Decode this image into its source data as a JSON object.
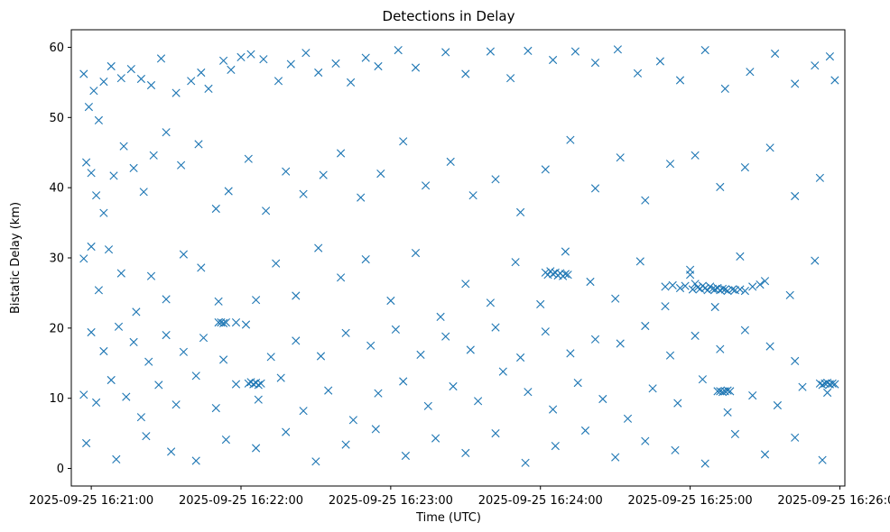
{
  "chart_data": {
    "type": "scatter",
    "title": "Detections in Delay",
    "xlabel": "Time (UTC)",
    "ylabel": "Bistatic Delay (km)",
    "marker": "x",
    "color": "#1f77b4",
    "grid": false,
    "x_start": "2025-09-25 16:20:52",
    "x_end": "2025-09-25 16:26:02",
    "xlim": [
      "2025-09-25 16:20:52",
      "2025-09-25 16:26:02"
    ],
    "ylim": [
      -2.5,
      62.5
    ],
    "x_ticks": [
      "2025-09-25 16:21:00",
      "2025-09-25 16:22:00",
      "2025-09-25 16:23:00",
      "2025-09-25 16:24:00",
      "2025-09-25 16:25:00",
      "2025-09-25 16:26:00"
    ],
    "y_ticks": [
      0,
      10,
      20,
      30,
      40,
      50,
      60
    ],
    "x_tick_labels": [
      "2025-09-25 16:21:00",
      "2025-09-25 16:22:00",
      "2025-09-25 16:23:00",
      "2025-09-25 16:24:00",
      "2025-09-25 16:25:00",
      "2025-09-25 16:26:00"
    ],
    "y_tick_labels": [
      "0",
      "10",
      "20",
      "30",
      "40",
      "50",
      "60"
    ],
    "points": [
      [
        "2025-09-25 16:20:57",
        56.2
      ],
      [
        "2025-09-25 16:20:59",
        51.5
      ],
      [
        "2025-09-25 16:21:01",
        53.8
      ],
      [
        "2025-09-25 16:21:03",
        49.6
      ],
      [
        "2025-09-25 16:21:05",
        55.1
      ],
      [
        "2025-09-25 16:21:08",
        57.3
      ],
      [
        "2025-09-25 16:21:12",
        55.6
      ],
      [
        "2025-09-25 16:21:16",
        56.9
      ],
      [
        "2025-09-25 16:21:20",
        55.5
      ],
      [
        "2025-09-25 16:21:24",
        54.6
      ],
      [
        "2025-09-25 16:21:28",
        58.4
      ],
      [
        "2025-09-25 16:21:34",
        53.5
      ],
      [
        "2025-09-25 16:21:40",
        55.2
      ],
      [
        "2025-09-25 16:21:44",
        56.4
      ],
      [
        "2025-09-25 16:21:47",
        54.1
      ],
      [
        "2025-09-25 16:21:53",
        58.1
      ],
      [
        "2025-09-25 16:21:56",
        56.8
      ],
      [
        "2025-09-25 16:22:00",
        58.6
      ],
      [
        "2025-09-25 16:22:04",
        59.0
      ],
      [
        "2025-09-25 16:22:09",
        58.3
      ],
      [
        "2025-09-25 16:22:15",
        55.2
      ],
      [
        "2025-09-25 16:22:20",
        57.6
      ],
      [
        "2025-09-25 16:22:26",
        59.2
      ],
      [
        "2025-09-25 16:22:31",
        56.4
      ],
      [
        "2025-09-25 16:22:38",
        57.7
      ],
      [
        "2025-09-25 16:22:44",
        55.0
      ],
      [
        "2025-09-25 16:22:50",
        58.5
      ],
      [
        "2025-09-25 16:22:55",
        57.3
      ],
      [
        "2025-09-25 16:23:03",
        59.6
      ],
      [
        "2025-09-25 16:23:10",
        57.1
      ],
      [
        "2025-09-25 16:23:22",
        59.3
      ],
      [
        "2025-09-25 16:23:30",
        56.2
      ],
      [
        "2025-09-25 16:23:40",
        59.4
      ],
      [
        "2025-09-25 16:23:48",
        55.6
      ],
      [
        "2025-09-25 16:23:55",
        59.5
      ],
      [
        "2025-09-25 16:24:05",
        58.2
      ],
      [
        "2025-09-25 16:24:14",
        59.4
      ],
      [
        "2025-09-25 16:24:22",
        57.8
      ],
      [
        "2025-09-25 16:24:31",
        59.7
      ],
      [
        "2025-09-25 16:24:39",
        56.3
      ],
      [
        "2025-09-25 16:24:48",
        58.0
      ],
      [
        "2025-09-25 16:24:56",
        55.3
      ],
      [
        "2025-09-25 16:25:06",
        59.6
      ],
      [
        "2025-09-25 16:25:14",
        54.1
      ],
      [
        "2025-09-25 16:25:24",
        56.5
      ],
      [
        "2025-09-25 16:25:34",
        59.1
      ],
      [
        "2025-09-25 16:25:42",
        54.8
      ],
      [
        "2025-09-25 16:25:50",
        57.4
      ],
      [
        "2025-09-25 16:25:56",
        58.7
      ],
      [
        "2025-09-25 16:25:58",
        55.3
      ],
      [
        "2025-09-25 16:20:58",
        43.6
      ],
      [
        "2025-09-25 16:21:00",
        42.1
      ],
      [
        "2025-09-25 16:21:02",
        38.9
      ],
      [
        "2025-09-25 16:21:05",
        36.4
      ],
      [
        "2025-09-25 16:21:09",
        41.7
      ],
      [
        "2025-09-25 16:21:13",
        45.9
      ],
      [
        "2025-09-25 16:21:17",
        42.8
      ],
      [
        "2025-09-25 16:21:21",
        39.4
      ],
      [
        "2025-09-25 16:21:25",
        44.6
      ],
      [
        "2025-09-25 16:21:30",
        47.9
      ],
      [
        "2025-09-25 16:21:36",
        43.2
      ],
      [
        "2025-09-25 16:21:43",
        46.2
      ],
      [
        "2025-09-25 16:21:50",
        37.0
      ],
      [
        "2025-09-25 16:21:55",
        39.5
      ],
      [
        "2025-09-25 16:22:03",
        44.1
      ],
      [
        "2025-09-25 16:22:10",
        36.7
      ],
      [
        "2025-09-25 16:22:18",
        42.3
      ],
      [
        "2025-09-25 16:22:25",
        39.1
      ],
      [
        "2025-09-25 16:22:33",
        41.8
      ],
      [
        "2025-09-25 16:22:40",
        44.9
      ],
      [
        "2025-09-25 16:22:48",
        38.6
      ],
      [
        "2025-09-25 16:22:56",
        42.0
      ],
      [
        "2025-09-25 16:23:05",
        46.6
      ],
      [
        "2025-09-25 16:23:14",
        40.3
      ],
      [
        "2025-09-25 16:23:24",
        43.7
      ],
      [
        "2025-09-25 16:23:33",
        38.9
      ],
      [
        "2025-09-25 16:23:42",
        41.2
      ],
      [
        "2025-09-25 16:23:52",
        36.5
      ],
      [
        "2025-09-25 16:24:02",
        42.6
      ],
      [
        "2025-09-25 16:24:12",
        46.8
      ],
      [
        "2025-09-25 16:24:22",
        39.9
      ],
      [
        "2025-09-25 16:24:32",
        44.3
      ],
      [
        "2025-09-25 16:24:42",
        38.2
      ],
      [
        "2025-09-25 16:24:52",
        43.4
      ],
      [
        "2025-09-25 16:25:02",
        44.6
      ],
      [
        "2025-09-25 16:25:12",
        40.1
      ],
      [
        "2025-09-25 16:25:22",
        42.9
      ],
      [
        "2025-09-25 16:25:32",
        45.7
      ],
      [
        "2025-09-25 16:25:42",
        38.8
      ],
      [
        "2025-09-25 16:25:52",
        41.4
      ],
      [
        "2025-09-25 16:20:57",
        29.9
      ],
      [
        "2025-09-25 16:21:00",
        31.6
      ],
      [
        "2025-09-25 16:21:03",
        25.4
      ],
      [
        "2025-09-25 16:21:07",
        31.2
      ],
      [
        "2025-09-25 16:21:12",
        27.8
      ],
      [
        "2025-09-25 16:21:18",
        22.3
      ],
      [
        "2025-09-25 16:21:24",
        27.4
      ],
      [
        "2025-09-25 16:21:30",
        24.1
      ],
      [
        "2025-09-25 16:21:37",
        30.5
      ],
      [
        "2025-09-25 16:21:44",
        28.6
      ],
      [
        "2025-09-25 16:21:51",
        23.8
      ],
      [
        "2025-09-25 16:21:58",
        20.8
      ],
      [
        "2025-09-25 16:22:06",
        24.0
      ],
      [
        "2025-09-25 16:22:14",
        29.2
      ],
      [
        "2025-09-25 16:22:22",
        24.6
      ],
      [
        "2025-09-25 16:22:31",
        31.4
      ],
      [
        "2025-09-25 16:22:40",
        27.2
      ],
      [
        "2025-09-25 16:22:50",
        29.8
      ],
      [
        "2025-09-25 16:23:00",
        23.9
      ],
      [
        "2025-09-25 16:23:10",
        30.7
      ],
      [
        "2025-09-25 16:23:20",
        21.6
      ],
      [
        "2025-09-25 16:23:30",
        26.3
      ],
      [
        "2025-09-25 16:23:40",
        23.6
      ],
      [
        "2025-09-25 16:23:50",
        29.4
      ],
      [
        "2025-09-25 16:24:00",
        23.4
      ],
      [
        "2025-09-25 16:24:10",
        30.9
      ],
      [
        "2025-09-25 16:24:20",
        26.6
      ],
      [
        "2025-09-25 16:24:30",
        24.2
      ],
      [
        "2025-09-25 16:24:40",
        29.5
      ],
      [
        "2025-09-25 16:24:50",
        23.1
      ],
      [
        "2025-09-25 16:25:00",
        28.3
      ],
      [
        "2025-09-25 16:25:10",
        23.0
      ],
      [
        "2025-09-25 16:25:20",
        30.2
      ],
      [
        "2025-09-25 16:25:30",
        26.7
      ],
      [
        "2025-09-25 16:25:40",
        24.7
      ],
      [
        "2025-09-25 16:25:50",
        29.6
      ],
      [
        "2025-09-25 16:21:00",
        19.4
      ],
      [
        "2025-09-25 16:21:05",
        16.7
      ],
      [
        "2025-09-25 16:21:11",
        20.2
      ],
      [
        "2025-09-25 16:21:17",
        18.0
      ],
      [
        "2025-09-25 16:21:23",
        15.2
      ],
      [
        "2025-09-25 16:21:30",
        19.0
      ],
      [
        "2025-09-25 16:21:37",
        16.6
      ],
      [
        "2025-09-25 16:21:45",
        18.6
      ],
      [
        "2025-09-25 16:21:53",
        15.5
      ],
      [
        "2025-09-25 16:22:02",
        20.5
      ],
      [
        "2025-09-25 16:22:12",
        15.9
      ],
      [
        "2025-09-25 16:22:22",
        18.2
      ],
      [
        "2025-09-25 16:22:32",
        16.0
      ],
      [
        "2025-09-25 16:22:42",
        19.3
      ],
      [
        "2025-09-25 16:22:52",
        17.5
      ],
      [
        "2025-09-25 16:23:02",
        19.8
      ],
      [
        "2025-09-25 16:23:12",
        16.2
      ],
      [
        "2025-09-25 16:23:22",
        18.8
      ],
      [
        "2025-09-25 16:23:32",
        16.9
      ],
      [
        "2025-09-25 16:23:42",
        20.1
      ],
      [
        "2025-09-25 16:23:52",
        15.8
      ],
      [
        "2025-09-25 16:24:02",
        19.5
      ],
      [
        "2025-09-25 16:24:12",
        16.4
      ],
      [
        "2025-09-25 16:24:22",
        18.4
      ],
      [
        "2025-09-25 16:24:32",
        17.8
      ],
      [
        "2025-09-25 16:24:42",
        20.3
      ],
      [
        "2025-09-25 16:24:52",
        16.1
      ],
      [
        "2025-09-25 16:25:02",
        18.9
      ],
      [
        "2025-09-25 16:25:12",
        17.0
      ],
      [
        "2025-09-25 16:25:22",
        19.7
      ],
      [
        "2025-09-25 16:25:32",
        17.4
      ],
      [
        "2025-09-25 16:25:42",
        15.3
      ],
      [
        "2025-09-25 16:20:57",
        10.5
      ],
      [
        "2025-09-25 16:21:02",
        9.4
      ],
      [
        "2025-09-25 16:21:08",
        12.6
      ],
      [
        "2025-09-25 16:21:14",
        10.2
      ],
      [
        "2025-09-25 16:21:20",
        7.3
      ],
      [
        "2025-09-25 16:21:27",
        11.9
      ],
      [
        "2025-09-25 16:21:34",
        9.1
      ],
      [
        "2025-09-25 16:21:42",
        13.2
      ],
      [
        "2025-09-25 16:21:50",
        8.6
      ],
      [
        "2025-09-25 16:21:58",
        12.0
      ],
      [
        "2025-09-25 16:22:07",
        9.8
      ],
      [
        "2025-09-25 16:22:16",
        12.9
      ],
      [
        "2025-09-25 16:22:25",
        8.2
      ],
      [
        "2025-09-25 16:22:35",
        11.1
      ],
      [
        "2025-09-25 16:22:45",
        6.9
      ],
      [
        "2025-09-25 16:22:55",
        10.7
      ],
      [
        "2025-09-25 16:23:05",
        12.4
      ],
      [
        "2025-09-25 16:23:15",
        8.9
      ],
      [
        "2025-09-25 16:23:25",
        11.7
      ],
      [
        "2025-09-25 16:23:35",
        9.6
      ],
      [
        "2025-09-25 16:23:45",
        13.8
      ],
      [
        "2025-09-25 16:23:55",
        10.9
      ],
      [
        "2025-09-25 16:24:05",
        8.4
      ],
      [
        "2025-09-25 16:24:15",
        12.2
      ],
      [
        "2025-09-25 16:24:25",
        9.9
      ],
      [
        "2025-09-25 16:24:35",
        7.1
      ],
      [
        "2025-09-25 16:24:45",
        11.4
      ],
      [
        "2025-09-25 16:24:55",
        9.3
      ],
      [
        "2025-09-25 16:25:05",
        12.7
      ],
      [
        "2025-09-25 16:25:15",
        8.0
      ],
      [
        "2025-09-25 16:25:25",
        10.4
      ],
      [
        "2025-09-25 16:25:35",
        9.0
      ],
      [
        "2025-09-25 16:25:45",
        11.6
      ],
      [
        "2025-09-25 16:25:55",
        10.8
      ],
      [
        "2025-09-25 16:20:58",
        3.6
      ],
      [
        "2025-09-25 16:21:10",
        1.3
      ],
      [
        "2025-09-25 16:21:22",
        4.6
      ],
      [
        "2025-09-25 16:21:32",
        2.4
      ],
      [
        "2025-09-25 16:21:42",
        1.1
      ],
      [
        "2025-09-25 16:21:54",
        4.1
      ],
      [
        "2025-09-25 16:22:06",
        2.9
      ],
      [
        "2025-09-25 16:22:18",
        5.2
      ],
      [
        "2025-09-25 16:22:30",
        1.0
      ],
      [
        "2025-09-25 16:22:42",
        3.4
      ],
      [
        "2025-09-25 16:22:54",
        5.6
      ],
      [
        "2025-09-25 16:23:06",
        1.8
      ],
      [
        "2025-09-25 16:23:18",
        4.3
      ],
      [
        "2025-09-25 16:23:30",
        2.2
      ],
      [
        "2025-09-25 16:23:42",
        5.0
      ],
      [
        "2025-09-25 16:23:54",
        0.8
      ],
      [
        "2025-09-25 16:24:06",
        3.2
      ],
      [
        "2025-09-25 16:24:18",
        5.4
      ],
      [
        "2025-09-25 16:24:30",
        1.6
      ],
      [
        "2025-09-25 16:24:42",
        3.9
      ],
      [
        "2025-09-25 16:24:54",
        2.6
      ],
      [
        "2025-09-25 16:25:06",
        0.7
      ],
      [
        "2025-09-25 16:25:18",
        4.9
      ],
      [
        "2025-09-25 16:25:30",
        2.0
      ],
      [
        "2025-09-25 16:25:42",
        4.4
      ],
      [
        "2025-09-25 16:25:53",
        1.2
      ],
      [
        "2025-09-25 16:24:02",
        27.9
      ],
      [
        "2025-09-25 16:24:03",
        27.6
      ],
      [
        "2025-09-25 16:24:04",
        28.1
      ],
      [
        "2025-09-25 16:24:05",
        27.7
      ],
      [
        "2025-09-25 16:24:06",
        27.9
      ],
      [
        "2025-09-25 16:24:07",
        27.5
      ],
      [
        "2025-09-25 16:24:08",
        27.8
      ],
      [
        "2025-09-25 16:24:09",
        27.4
      ],
      [
        "2025-09-25 16:24:10",
        27.7
      ],
      [
        "2025-09-25 16:24:11",
        27.6
      ],
      [
        "2025-09-25 16:24:50",
        25.9
      ],
      [
        "2025-09-25 16:24:53",
        26.1
      ],
      [
        "2025-09-25 16:24:56",
        25.7
      ],
      [
        "2025-09-25 16:24:58",
        26.0
      ],
      [
        "2025-09-25 16:25:00",
        27.6
      ],
      [
        "2025-09-25 16:25:01",
        25.5
      ],
      [
        "2025-09-25 16:25:02",
        26.3
      ],
      [
        "2025-09-25 16:25:03",
        25.8
      ],
      [
        "2025-09-25 16:25:04",
        25.6
      ],
      [
        "2025-09-25 16:25:05",
        26.0
      ],
      [
        "2025-09-25 16:25:06",
        25.7
      ],
      [
        "2025-09-25 16:25:07",
        25.4
      ],
      [
        "2025-09-25 16:25:08",
        25.9
      ],
      [
        "2025-09-25 16:25:09",
        25.6
      ],
      [
        "2025-09-25 16:25:10",
        25.5
      ],
      [
        "2025-09-25 16:25:11",
        25.7
      ],
      [
        "2025-09-25 16:25:12",
        25.4
      ],
      [
        "2025-09-25 16:25:13",
        25.6
      ],
      [
        "2025-09-25 16:25:14",
        25.5
      ],
      [
        "2025-09-25 16:25:15",
        25.3
      ],
      [
        "2025-09-25 16:25:17",
        25.5
      ],
      [
        "2025-09-25 16:25:18",
        25.4
      ],
      [
        "2025-09-25 16:25:20",
        25.5
      ],
      [
        "2025-09-25 16:25:22",
        25.3
      ],
      [
        "2025-09-25 16:25:25",
        25.9
      ],
      [
        "2025-09-25 16:25:28",
        26.2
      ],
      [
        "2025-09-25 16:21:51",
        20.8
      ],
      [
        "2025-09-25 16:21:52",
        20.8
      ],
      [
        "2025-09-25 16:21:53",
        20.7
      ],
      [
        "2025-09-25 16:21:54",
        20.8
      ],
      [
        "2025-09-25 16:22:03",
        12.1
      ],
      [
        "2025-09-25 16:22:04",
        12.3
      ],
      [
        "2025-09-25 16:22:05",
        12.0
      ],
      [
        "2025-09-25 16:22:06",
        12.2
      ],
      [
        "2025-09-25 16:22:07",
        11.9
      ],
      [
        "2025-09-25 16:22:08",
        12.1
      ],
      [
        "2025-09-25 16:25:11",
        11.0
      ],
      [
        "2025-09-25 16:25:12",
        11.0
      ],
      [
        "2025-09-25 16:25:13",
        10.9
      ],
      [
        "2025-09-25 16:25:14",
        11.0
      ],
      [
        "2025-09-25 16:25:15",
        11.1
      ],
      [
        "2025-09-25 16:25:16",
        11.0
      ],
      [
        "2025-09-25 16:25:52",
        12.1
      ],
      [
        "2025-09-25 16:25:53",
        11.9
      ],
      [
        "2025-09-25 16:25:54",
        12.1
      ],
      [
        "2025-09-25 16:25:55",
        12.2
      ],
      [
        "2025-09-25 16:25:56",
        12.0
      ],
      [
        "2025-09-25 16:25:57",
        12.1
      ],
      [
        "2025-09-25 16:25:58",
        12.0
      ]
    ]
  }
}
